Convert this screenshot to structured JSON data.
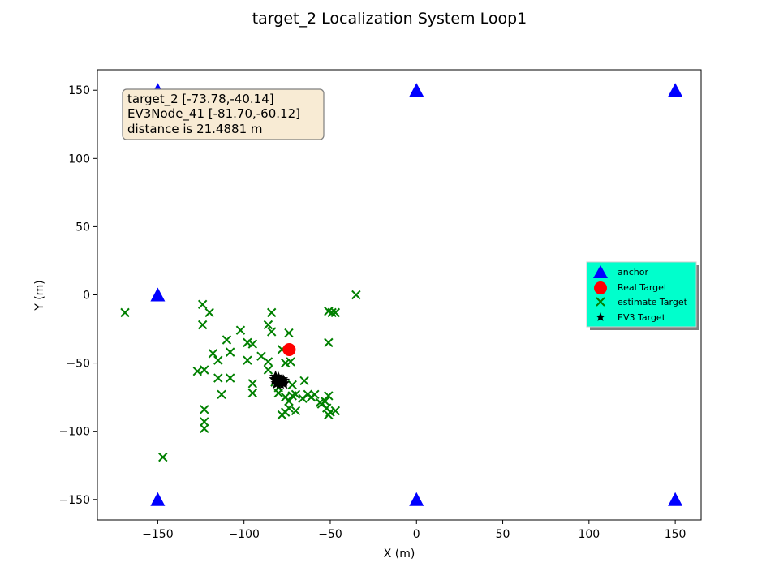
{
  "chart_data": {
    "type": "scatter",
    "title": "target_2 Localization System Loop1",
    "xlabel": "X (m)",
    "ylabel": "Y (m)",
    "xlim": [
      -185,
      165
    ],
    "ylim": [
      -165,
      165
    ],
    "xticks": [
      -150,
      -100,
      -50,
      0,
      50,
      100,
      150
    ],
    "yticks": [
      150,
      100,
      50,
      0,
      -50,
      -100,
      -150
    ],
    "xtick_labels": [
      "−150",
      "−100",
      "−50",
      "0",
      "50",
      "100",
      "150"
    ],
    "ytick_labels": [
      "150",
      "100",
      "50",
      "0",
      "−50",
      "−100",
      "−150"
    ],
    "grid": false,
    "legend_position": "center-right",
    "colors": {
      "anchor": "#0000ff",
      "real_target": "#ff0000",
      "estimate_target": "#008000",
      "ev3_target": "#000000",
      "legend_bg": "#00ffcc",
      "annotation_bg": "#f8ebd4",
      "annotation_border": "#7f7f7f"
    },
    "annotation": {
      "lines": [
        "target_2 [-73.78,-40.14]",
        "EV3Node_41 [-81.70,-60.12]",
        "distance is 21.4881  m"
      ]
    },
    "series": [
      {
        "name": "anchor",
        "marker": "triangle",
        "points": [
          [
            -150,
            150
          ],
          [
            0,
            150
          ],
          [
            150,
            150
          ],
          [
            -150,
            0
          ],
          [
            -150,
            -150
          ],
          [
            0,
            -150
          ],
          [
            150,
            -150
          ]
        ]
      },
      {
        "name": "Real Target",
        "marker": "circle",
        "points": [
          [
            -73.78,
            -40.14
          ]
        ]
      },
      {
        "name": "estimate Target",
        "marker": "x",
        "points": [
          [
            -169,
            -13
          ],
          [
            -124,
            -7
          ],
          [
            -120,
            -13
          ],
          [
            -124,
            -22
          ],
          [
            -102,
            -26
          ],
          [
            -86,
            -22
          ],
          [
            -84,
            -13
          ],
          [
            -84,
            -27
          ],
          [
            -74,
            -28
          ],
          [
            -51,
            -12
          ],
          [
            -49,
            -13
          ],
          [
            -47,
            -13
          ],
          [
            -35,
            0
          ],
          [
            -51,
            -35
          ],
          [
            -110,
            -33
          ],
          [
            -118,
            -43
          ],
          [
            -115,
            -48
          ],
          [
            -108,
            -42
          ],
          [
            -98,
            -35
          ],
          [
            -95,
            -36
          ],
          [
            -98,
            -48
          ],
          [
            -90,
            -45
          ],
          [
            -86,
            -49
          ],
          [
            -86,
            -55
          ],
          [
            -78,
            -40
          ],
          [
            -76,
            -50
          ],
          [
            -73,
            -49
          ],
          [
            -127,
            -56
          ],
          [
            -123,
            -55
          ],
          [
            -115,
            -61
          ],
          [
            -108,
            -61
          ],
          [
            -113,
            -73
          ],
          [
            -95,
            -65
          ],
          [
            -95,
            -72
          ],
          [
            -82,
            -64
          ],
          [
            -80,
            -68
          ],
          [
            -80,
            -72
          ],
          [
            -76,
            -75
          ],
          [
            -72,
            -66
          ],
          [
            -72,
            -74
          ],
          [
            -65,
            -63
          ],
          [
            -66,
            -76
          ],
          [
            -63,
            -73
          ],
          [
            -61,
            -75
          ],
          [
            -59,
            -73
          ],
          [
            -56,
            -79
          ],
          [
            -55,
            -80
          ],
          [
            -53,
            -78
          ],
          [
            -51,
            -74
          ],
          [
            -50,
            -86
          ],
          [
            -51,
            -88
          ],
          [
            -47,
            -85
          ],
          [
            -52,
            -83
          ],
          [
            -78,
            -88
          ],
          [
            -76,
            -86
          ],
          [
            -74,
            -83
          ],
          [
            -70,
            -85
          ],
          [
            -74,
            -78
          ],
          [
            -70,
            -73
          ],
          [
            -123,
            -84
          ],
          [
            -123,
            -93
          ],
          [
            -123,
            -98
          ],
          [
            -147,
            -119
          ]
        ]
      },
      {
        "name": "EV3 Target",
        "marker": "star",
        "points": [
          [
            -81.7,
            -60.12
          ],
          [
            -80,
            -61
          ],
          [
            -78,
            -62
          ],
          [
            -82,
            -62
          ],
          [
            -80,
            -64
          ],
          [
            -77,
            -63
          ],
          [
            -81,
            -65
          ],
          [
            -79,
            -65
          ],
          [
            -77,
            -65
          ],
          [
            -79,
            -63
          ]
        ]
      }
    ],
    "legend": [
      "anchor",
      "Real Target",
      "estimate Target",
      "EV3 Target"
    ]
  }
}
